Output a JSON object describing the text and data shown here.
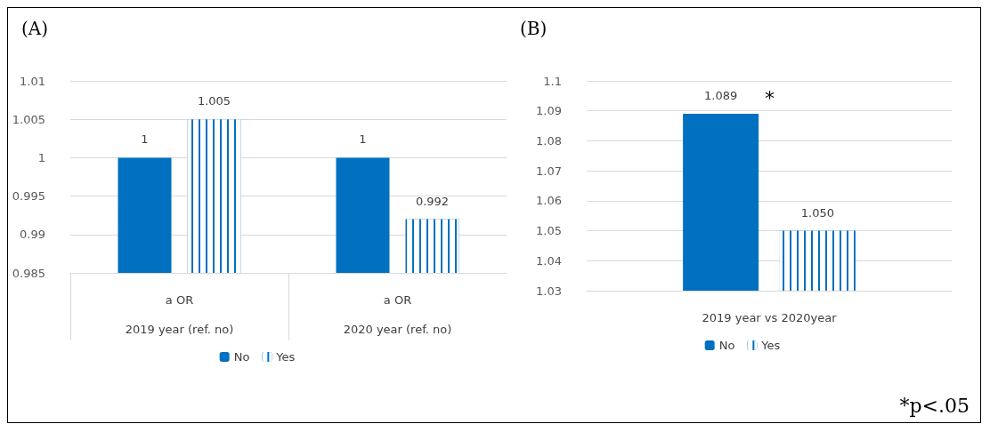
{
  "chart_data": [
    {
      "type": "bar",
      "title": "(A)",
      "categories": [
        "a OR\n2019 year (ref. no)",
        "a OR\n2020 year (ref. no)"
      ],
      "series": [
        {
          "name": "No",
          "color": "#0070c0",
          "values": [
            1,
            1
          ]
        },
        {
          "name": "Yes",
          "color": "#0070c0",
          "values": [
            1.005,
            0.992
          ]
        }
      ],
      "ylim": [
        0.985,
        1.01
      ],
      "yticks": [
        0.985,
        0.99,
        0.995,
        1,
        1.005,
        1.01
      ],
      "grid": "y",
      "legend": "bottom",
      "data_labels": true
    },
    {
      "type": "bar",
      "title": "(B)",
      "categories": [
        "2019 year vs 2020year"
      ],
      "series": [
        {
          "name": "No",
          "color": "#0070c0",
          "values": [
            1.089
          ],
          "value_labels": [
            "1.089"
          ]
        },
        {
          "name": "Yes",
          "color": "#0070c0",
          "values": [
            1.05
          ],
          "value_labels": [
            "1.050"
          ]
        }
      ],
      "ylim": [
        1.03,
        1.1
      ],
      "yticks": [
        1.03,
        1.04,
        1.05,
        1.06,
        1.07,
        1.08,
        1.09,
        1.1
      ],
      "grid": "y",
      "legend": "bottom",
      "annotations": [
        "*",
        "*p<.05"
      ]
    }
  ]
}
